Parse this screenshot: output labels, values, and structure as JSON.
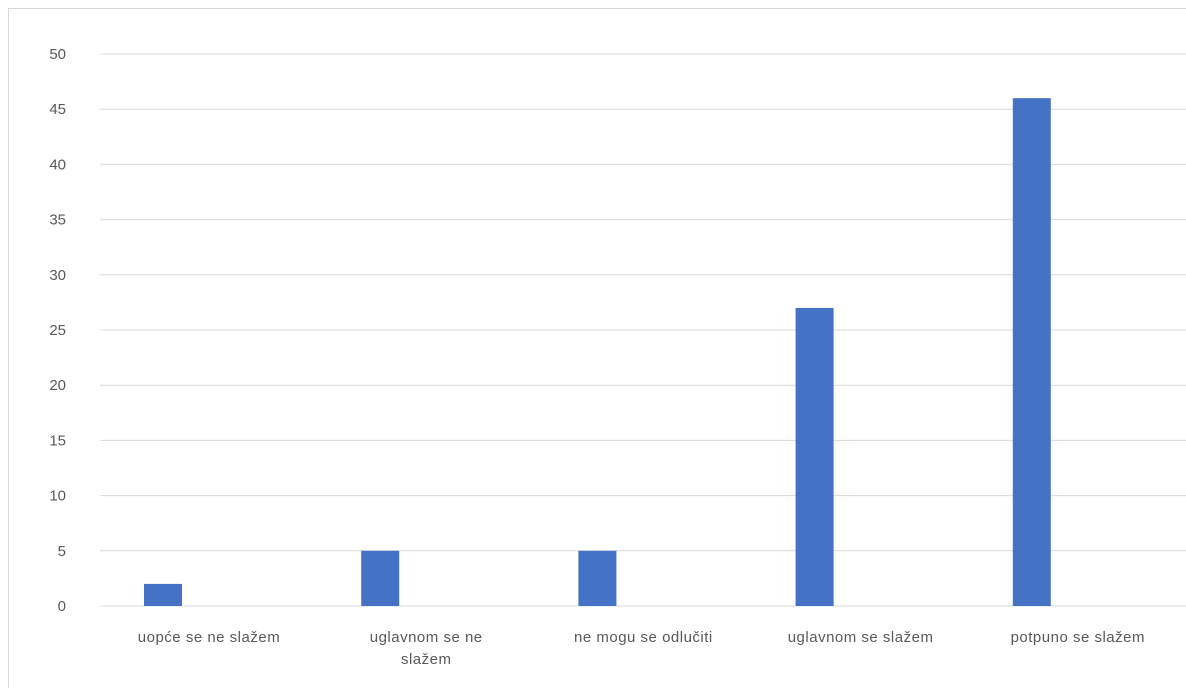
{
  "chart_data": {
    "type": "bar",
    "title": "",
    "xlabel": "",
    "ylabel": "",
    "categories": [
      "uopće se ne slažem",
      "uglavnom se ne slažem",
      "ne mogu se odlučiti",
      "uglavnom se slažem",
      "potpuno se slažem"
    ],
    "category_label_lines": [
      [
        "uopće se ne slažem"
      ],
      [
        "uglavnom se ne",
        "slažem"
      ],
      [
        "ne mogu se odlučiti"
      ],
      [
        "uglavnom se slažem"
      ],
      [
        "potpuno se slažem"
      ]
    ],
    "values": [
      2,
      5,
      5,
      27,
      46
    ],
    "ylim": [
      0,
      50
    ],
    "yticks": [
      0,
      5,
      10,
      15,
      20,
      25,
      30,
      35,
      40,
      45,
      50
    ],
    "grid": true,
    "legend": "none",
    "bar_color": "#4472c4",
    "gridline_color": "#d9d9d9"
  }
}
